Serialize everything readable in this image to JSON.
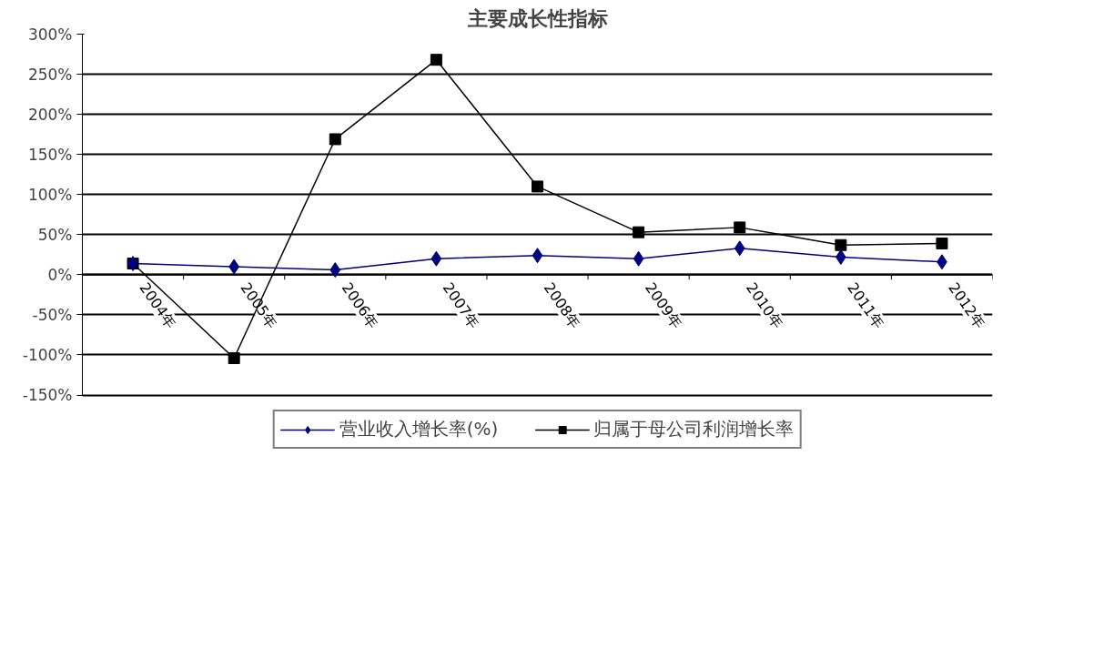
{
  "chart_data": {
    "type": "line",
    "title": "主要成长性指标",
    "categories": [
      "2004年",
      "2005年",
      "2006年",
      "2007年",
      "2008年",
      "2009年",
      "2010年",
      "2011年",
      "2012年"
    ],
    "series": [
      {
        "name": "营业收入增长率(%)",
        "color": "#000080",
        "marker": "diamond",
        "values": [
          14,
          10,
          6,
          20,
          24,
          20,
          33,
          22,
          16
        ]
      },
      {
        "name": "归属于母公司利润增长率",
        "color": "#000000",
        "marker": "square",
        "values": [
          14,
          -104,
          169,
          268,
          110,
          53,
          59,
          37,
          39
        ]
      }
    ],
    "ylim": [
      -150,
      300
    ],
    "yticks": [
      {
        "value": -150,
        "label": "-150%"
      },
      {
        "value": -100,
        "label": "-100%"
      },
      {
        "value": -50,
        "label": "-50%"
      },
      {
        "value": 0,
        "label": "0%"
      },
      {
        "value": 50,
        "label": "50%"
      },
      {
        "value": 100,
        "label": "100%"
      },
      {
        "value": 150,
        "label": "150%"
      },
      {
        "value": 200,
        "label": "200%"
      },
      {
        "value": 250,
        "label": "250%"
      },
      {
        "value": 300,
        "label": "300%"
      }
    ],
    "grid": "y",
    "legend": "bottom"
  }
}
